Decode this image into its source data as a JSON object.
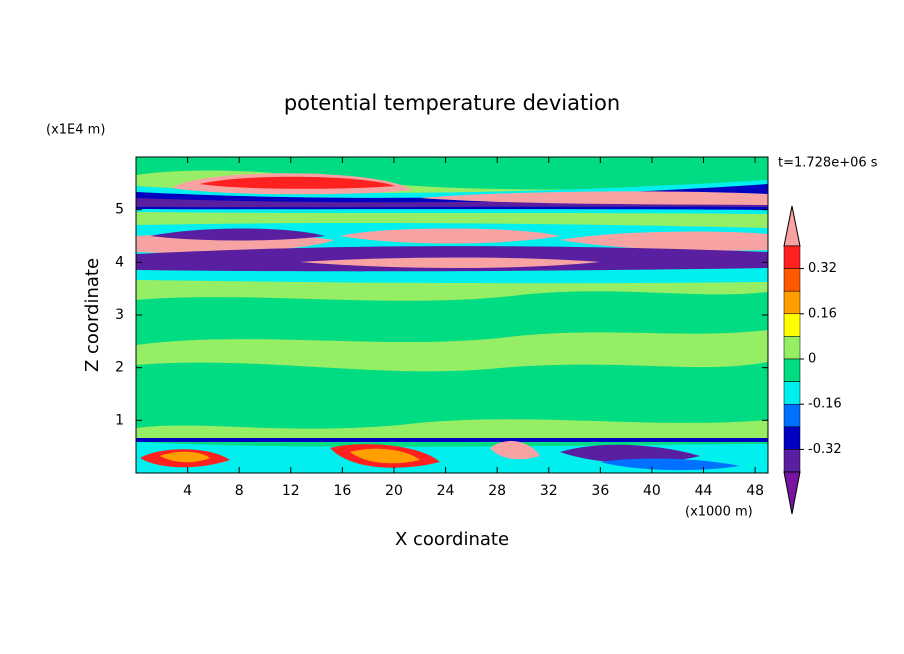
{
  "chart_data": {
    "type": "contour",
    "title": "potential temperature deviation",
    "xlabel": "X coordinate",
    "ylabel": "Z coordinate",
    "x_unit": "(x1000 m)",
    "y_unit": "(x1E4 m)",
    "time_label": "t=1.728e+06 s",
    "xlim": [
      0,
      49
    ],
    "ylim": [
      0,
      6
    ],
    "xticks": [
      4,
      8,
      12,
      16,
      20,
      24,
      28,
      32,
      36,
      40,
      44,
      48
    ],
    "yticks": [
      1,
      2,
      3,
      4,
      5
    ],
    "levels": [
      0.4,
      0.32,
      0.24,
      0.16,
      0.08,
      0,
      -0.08,
      -0.16,
      -0.24,
      -0.32,
      -0.4
    ],
    "colors": [
      "#f7a3a3",
      "#ff2020",
      "#ff5a00",
      "#ffa000",
      "#ffff00",
      "#96ee64",
      "#00dc82",
      "#00f0f0",
      "#0070ff",
      "#0000c0",
      "#5a1ea0",
      "#7814a0"
    ],
    "colorbar_ticks": [
      0.32,
      0.16,
      0,
      -0.16,
      -0.32
    ]
  }
}
